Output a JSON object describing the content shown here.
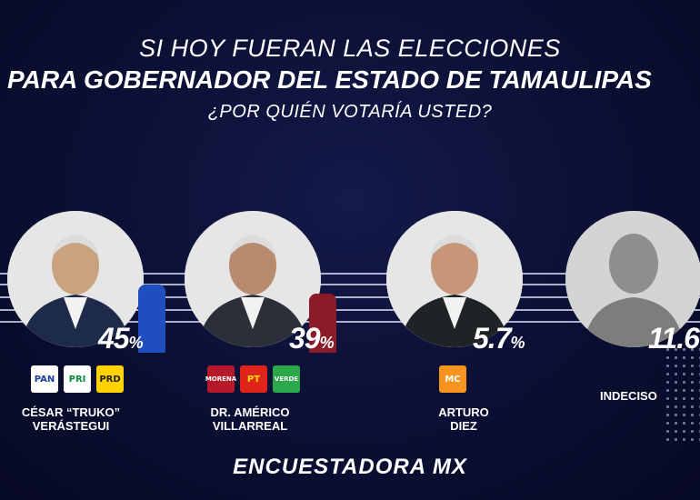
{
  "header": {
    "line1": "SI HOY FUERAN LAS ELECCIONES",
    "line2": "PARA GOBERNADOR DEL ESTADO DE TAMAULIPAS",
    "line3": "¿POR QUIÉN VOTARÍA USTED?"
  },
  "chart_data": {
    "type": "bar",
    "title": "SI HOY FUERAN LAS ELECCIONES PARA GOBERNADOR DEL ESTADO DE TAMAULIPAS ¿POR QUIÉN VOTARÍA USTED?",
    "categories": [
      "CÉSAR “TRUKO” VERÁSTEGUI",
      "DR. AMÉRICO VILLARREAL",
      "ARTURO DIEZ",
      "INDECISO"
    ],
    "values": [
      45,
      39,
      5.7,
      11.6
    ],
    "value_labels": [
      "45",
      "39",
      "5.7",
      "11.6"
    ],
    "unit": "%",
    "colors": [
      "#1f4fbf",
      "#8a1c2a",
      "#f7941d",
      "#9a9a9a"
    ],
    "ylim": [
      0,
      45
    ]
  },
  "candidates": [
    {
      "name1": "CÉSAR “TRUKO”",
      "name2": "VERÁSTEGUI",
      "parties": [
        {
          "label": "PAN",
          "icon": "pan-logo-icon",
          "bg": "#ffffff",
          "fg": "#1a3c9c"
        },
        {
          "label": "PRI",
          "icon": "pri-logo-icon",
          "bg": "#ffffff",
          "fg": "#0a8a3c"
        },
        {
          "label": "PRD",
          "icon": "prd-logo-icon",
          "bg": "#ffd200",
          "fg": "#222222"
        }
      ]
    },
    {
      "name1": "DR. AMÉRICO",
      "name2": "VILLARREAL",
      "parties": [
        {
          "label": "MORENA",
          "icon": "morena-logo-icon",
          "bg": "#b5192a",
          "fg": "#ffffff"
        },
        {
          "label": "PT",
          "icon": "pt-logo-icon",
          "bg": "#e2231a",
          "fg": "#ffe600"
        },
        {
          "label": "VERDE",
          "icon": "verde-logo-icon",
          "bg": "#2aa84a",
          "fg": "#ffffff"
        }
      ]
    },
    {
      "name1": "ARTURO",
      "name2": "DIEZ",
      "parties": [
        {
          "label": "MC",
          "icon": "mc-logo-icon",
          "bg": "#f7941d",
          "fg": "#ffffff"
        }
      ]
    },
    {
      "name1": "INDECISO",
      "name2": "",
      "parties": []
    }
  ],
  "brand": "ENCUESTADORA MX"
}
